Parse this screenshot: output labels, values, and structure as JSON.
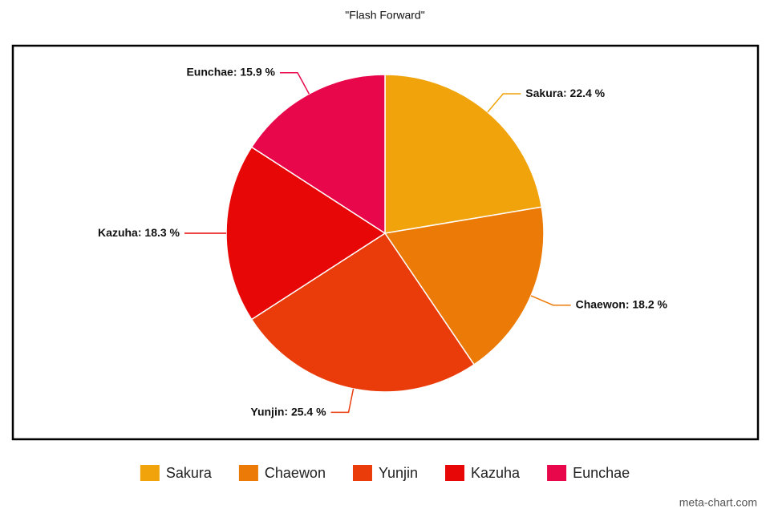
{
  "chart_data": {
    "type": "pie",
    "title": "\"Flash Forward\"",
    "categories": [
      "Sakura",
      "Chaewon",
      "Yunjin",
      "Kazuha",
      "Eunchae"
    ],
    "values": [
      22.4,
      18.2,
      25.4,
      18.3,
      15.9
    ],
    "value_labels": [
      "22.4 %",
      "18.2 %",
      "25.4 %",
      "18.3 %",
      "15.9 %"
    ],
    "colors": [
      "#f0a30a",
      "#ec7a06",
      "#ea3c0a",
      "#e80707",
      "#e8074a"
    ],
    "legend": "bottom",
    "watermark": "meta-chart.com"
  }
}
